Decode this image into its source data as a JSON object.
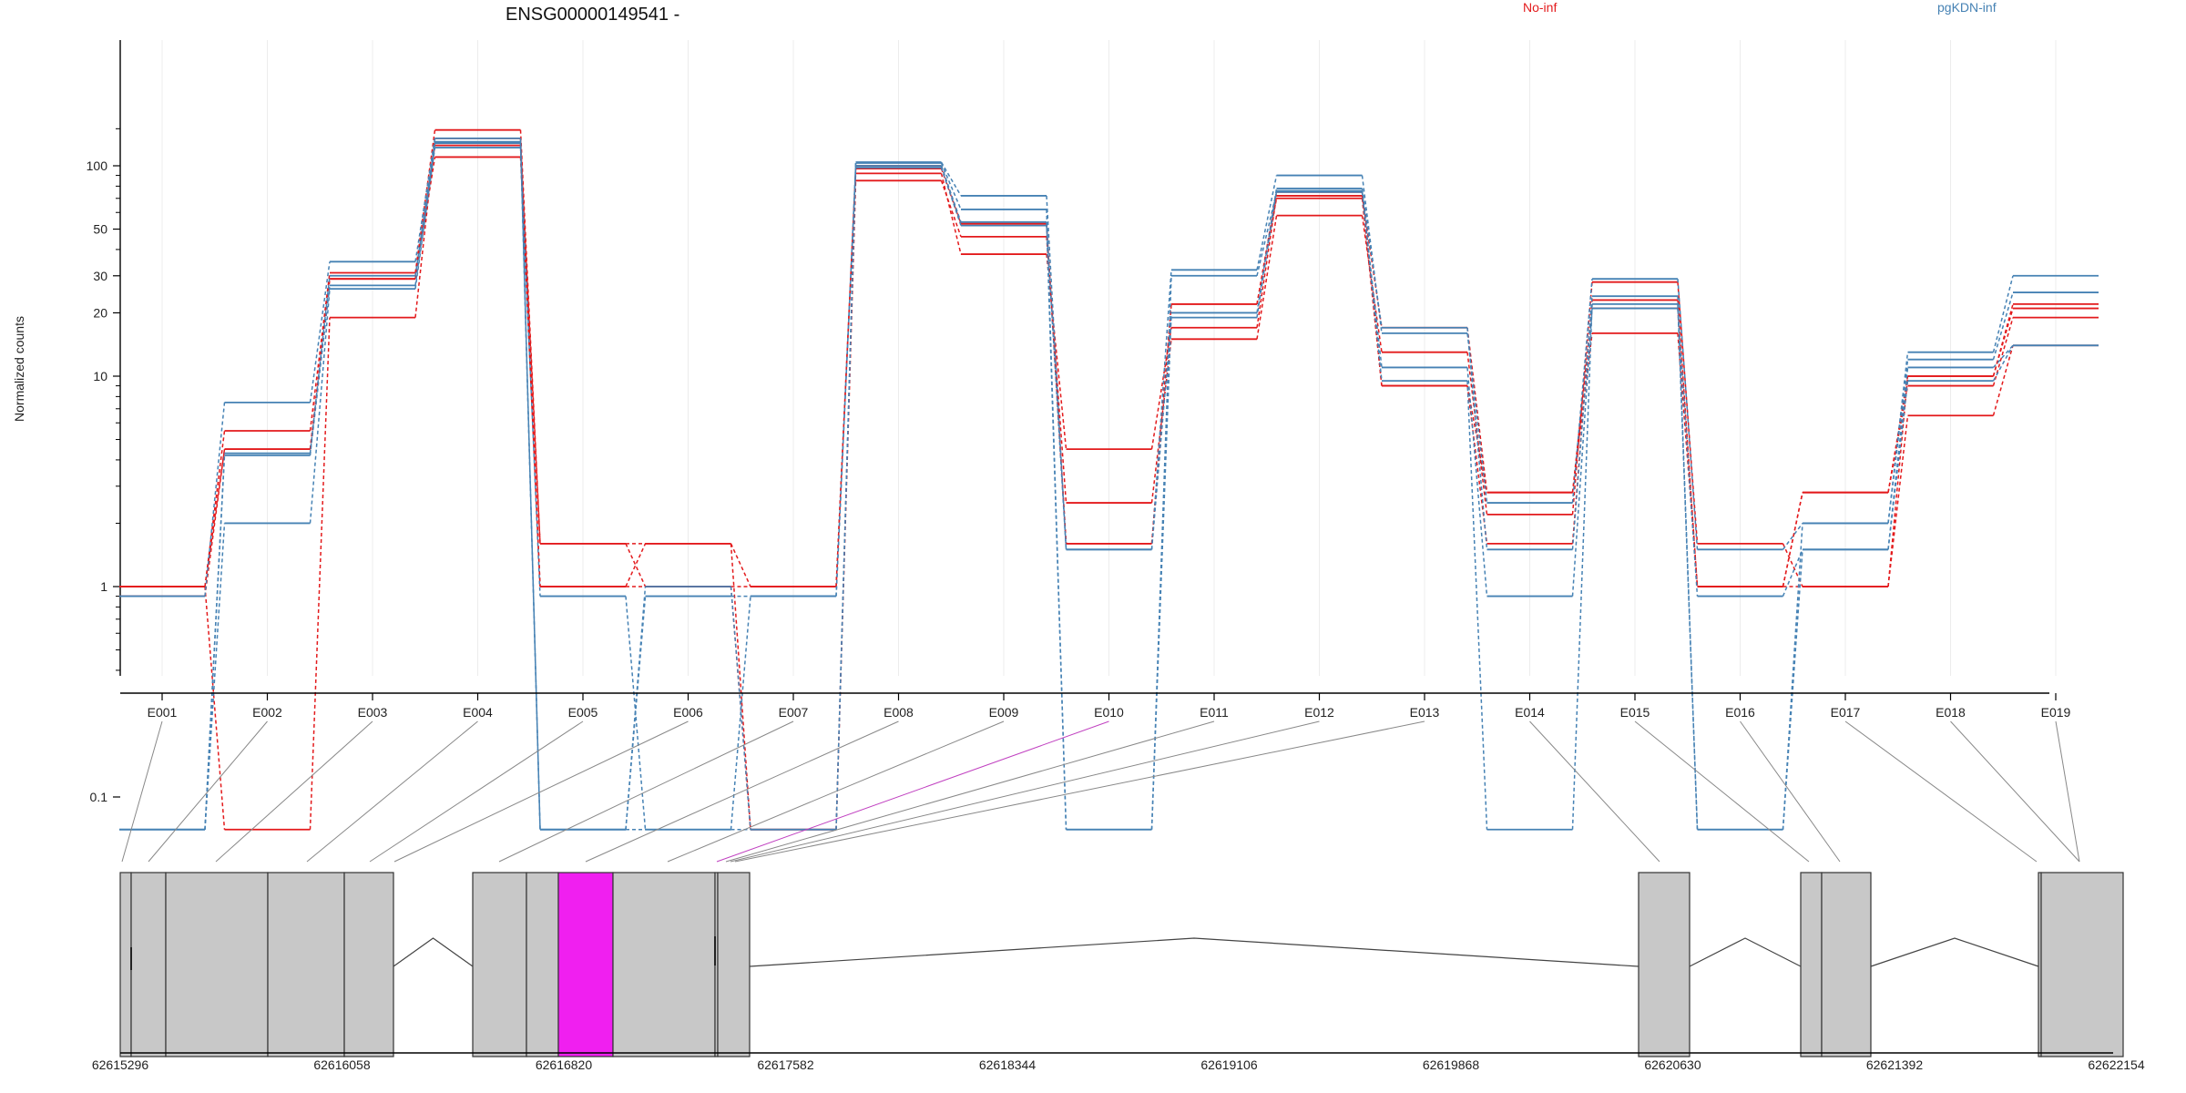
{
  "chart_data": {
    "type": "line",
    "title": "ENSG00000149541 -",
    "ylabel": "Normalized counts",
    "y_scale": "log",
    "ylim": [
      0.07,
      200
    ],
    "y_ticks": [
      0.1,
      1,
      10,
      20,
      30,
      50,
      100
    ],
    "y_tick_labels": [
      "0.1",
      "1",
      "10",
      "20",
      "30",
      "50",
      "100"
    ],
    "grid": "vertical",
    "legend": [
      {
        "name": "No-inf",
        "color": "#e31a1c"
      },
      {
        "name": "pgKDN-inf",
        "color": "#4682b4"
      }
    ],
    "categories": [
      "E001",
      "E002",
      "E003",
      "E004",
      "E005",
      "E006",
      "E007",
      "E008",
      "E009",
      "E010",
      "E011",
      "E012",
      "E013",
      "E014",
      "E015",
      "E016",
      "E017",
      "E018",
      "E019"
    ],
    "series": [
      {
        "group": "No-inf",
        "color": "#e31a1c",
        "values": [
          1.0,
          5.5,
          31,
          148,
          1.6,
          1.6,
          1.0,
          92,
          38,
          4.5,
          17,
          72,
          17,
          2.8,
          16,
          1.0,
          2.8,
          9,
          19
        ]
      },
      {
        "group": "No-inf",
        "color": "#e31a1c",
        "values": [
          1.0,
          0.07,
          19,
          135,
          1.0,
          1.0,
          0.07,
          85,
          46,
          2.5,
          15,
          58,
          13,
          2.2,
          28,
          1.6,
          1.0,
          6.5,
          14
        ]
      },
      {
        "group": "No-inf",
        "color": "#e31a1c",
        "values": [
          1.0,
          4.5,
          29,
          125,
          1.6,
          1.0,
          1.0,
          97,
          53,
          1.6,
          22,
          75,
          9,
          1.6,
          23,
          1.0,
          2.8,
          10,
          21
        ]
      },
      {
        "group": "No-inf",
        "color": "#e31a1c",
        "values": [
          0.9,
          4.5,
          29,
          110,
          1.0,
          1.6,
          0.07,
          100,
          53,
          1.6,
          22,
          70,
          9,
          2.8,
          21,
          1.0,
          1.0,
          10,
          22
        ]
      },
      {
        "group": "pgKDN-inf",
        "color": "#4682b4",
        "values": [
          0.9,
          7.5,
          35,
          135,
          0.07,
          1.0,
          0.07,
          104,
          72,
          1.5,
          32,
          90,
          16,
          2.5,
          29,
          1.5,
          2.0,
          13,
          30
        ]
      },
      {
        "group": "pgKDN-inf",
        "color": "#4682b4",
        "values": [
          0.07,
          4.2,
          27,
          128,
          0.07,
          0.07,
          0.07,
          103,
          62,
          0.07,
          20,
          78,
          17,
          1.5,
          24,
          0.07,
          2.0,
          12,
          25
        ]
      },
      {
        "group": "pgKDN-inf",
        "color": "#4682b4",
        "values": [
          0.07,
          2.0,
          26,
          122,
          0.9,
          0.07,
          0.9,
          100,
          54,
          0.07,
          30,
          75,
          11,
          0.9,
          21,
          0.9,
          1.5,
          9.5,
          14
        ]
      },
      {
        "group": "pgKDN-inf",
        "color": "#4682b4",
        "values": [
          0.07,
          4.3,
          30,
          130,
          0.07,
          0.9,
          0.9,
          98,
          52,
          1.5,
          19,
          76,
          9.5,
          0.07,
          22,
          0.07,
          1.5,
          11,
          14
        ]
      }
    ],
    "exon_links": [
      {
        "exon": "E001",
        "highlight": false
      },
      {
        "exon": "E002",
        "highlight": false
      },
      {
        "exon": "E003",
        "highlight": false
      },
      {
        "exon": "E004",
        "highlight": false
      },
      {
        "exon": "E005",
        "highlight": false
      },
      {
        "exon": "E006",
        "highlight": false
      },
      {
        "exon": "E007",
        "highlight": false
      },
      {
        "exon": "E008",
        "highlight": false
      },
      {
        "exon": "E009",
        "highlight": false
      },
      {
        "exon": "E010",
        "highlight": true
      },
      {
        "exon": "E011",
        "highlight": false
      },
      {
        "exon": "E012",
        "highlight": false
      },
      {
        "exon": "E013",
        "highlight": false
      },
      {
        "exon": "E014",
        "highlight": false
      },
      {
        "exon": "E015",
        "highlight": false
      },
      {
        "exon": "E016",
        "highlight": false
      },
      {
        "exon": "E017",
        "highlight": false
      },
      {
        "exon": "E018",
        "highlight": false
      },
      {
        "exon": "E019",
        "highlight": false
      }
    ],
    "genomic_axis_labels": [
      "62615296",
      "62616058",
      "62616820",
      "62617582",
      "62618344",
      "62619106",
      "62619868",
      "62620630",
      "62621392",
      "62622154"
    ],
    "exon_colors": {
      "normal": "#c8c8c8",
      "highlight": "#f01ff0"
    },
    "link_colors": {
      "normal": "#888888",
      "highlight": "#c040c0"
    }
  }
}
